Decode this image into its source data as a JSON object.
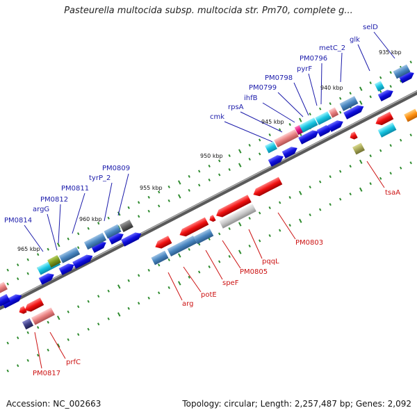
{
  "title": "Pasteurella multocida subsp. multocida str. Pm70, complete g...",
  "footer": {
    "accession": "Accession: NC_002663",
    "summary": "Topology: circular; Length: 2,257,487 bp; Genes: 2,092"
  },
  "colors": {
    "backbone": "#7a7a7a",
    "tick": "#2e8b2e",
    "forward_label": "#1a1aaa",
    "reverse_label": "#cc1111"
  },
  "kbp_ticks": [
    "935 kbp",
    "940 kbp",
    "945 kbp",
    "950 kbp",
    "955 kbp",
    "960 kbp",
    "965 kbp"
  ],
  "forward_labels": [
    "selD",
    "glk",
    "metC_2",
    "PM0796",
    "pyrF",
    "PM0798",
    "PM0799",
    "ihfB",
    "rpsA",
    "cmk",
    "PM0809",
    "tyrP_2",
    "PM0811",
    "PM0812",
    "argG",
    "PM0814"
  ],
  "reverse_labels": [
    "tsaA",
    "PM0803",
    "pqqL",
    "PM0805",
    "speF",
    "potE",
    "arg",
    "prfC",
    "PM0817"
  ]
}
